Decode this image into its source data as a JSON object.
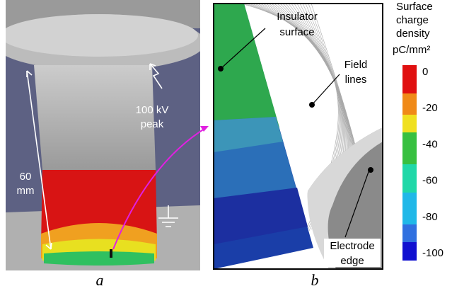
{
  "panel_a": {
    "label": "a",
    "annotations": {
      "voltage": [
        "100 kV",
        "peak"
      ],
      "length": [
        "60",
        "mm"
      ]
    }
  },
  "panel_b": {
    "label": "b",
    "annotations": {
      "insulator": [
        "Insulator",
        "surface"
      ],
      "field_lines": [
        "Field",
        "lines"
      ],
      "electrode": [
        "Electrode",
        "edge"
      ]
    }
  },
  "colorbar": {
    "title": [
      "Surface",
      "charge",
      "density"
    ],
    "unit": "pC/mm²",
    "ticks": [
      0,
      -20,
      -40,
      -60,
      -80,
      -100
    ]
  }
}
